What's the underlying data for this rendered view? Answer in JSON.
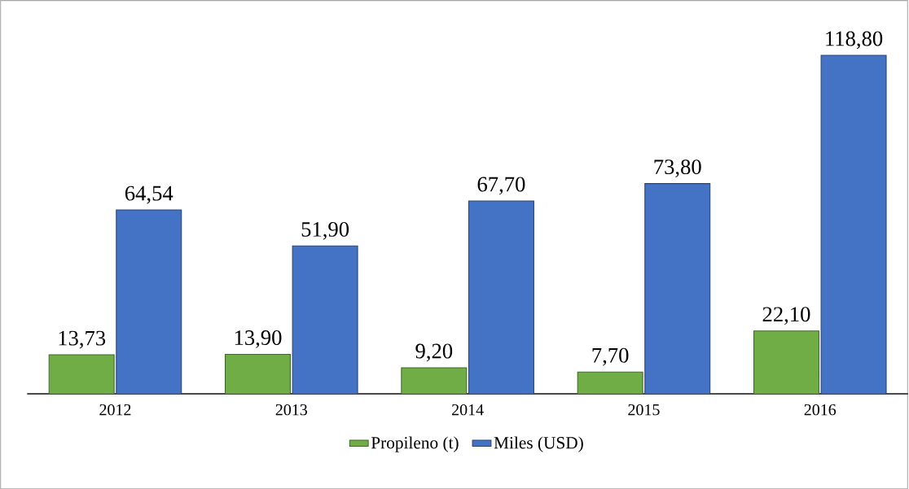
{
  "chart_data": {
    "type": "bar",
    "categories": [
      "2012",
      "2013",
      "2014",
      "2015",
      "2016"
    ],
    "series": [
      {
        "name": "Propileno (t)",
        "color": "#70ad47",
        "values": [
          13.73,
          13.9,
          9.2,
          7.7,
          22.1
        ],
        "value_labels": [
          "13,73",
          "13,90",
          "9,20",
          "7,70",
          "22,10"
        ]
      },
      {
        "name": "Miles (USD)",
        "color": "#4472c4",
        "values": [
          64.54,
          51.9,
          67.7,
          73.8,
          118.8
        ],
        "value_labels": [
          "64,54",
          "51,90",
          "67,70",
          "73,80",
          "118,80"
        ]
      }
    ],
    "legend": "bottom"
  }
}
